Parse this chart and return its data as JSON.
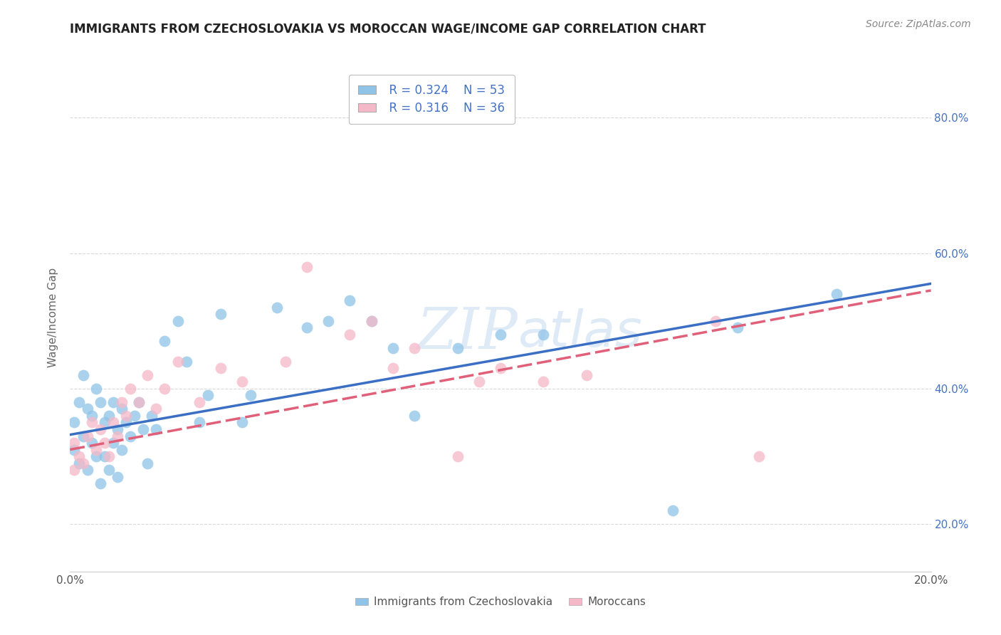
{
  "title": "IMMIGRANTS FROM CZECHOSLOVAKIA VS MOROCCAN WAGE/INCOME GAP CORRELATION CHART",
  "source": "Source: ZipAtlas.com",
  "ylabel": "Wage/Income Gap",
  "legend_label1": "Immigrants from Czechoslovakia",
  "legend_label2": "Moroccans",
  "r1": 0.324,
  "n1": 53,
  "r2": 0.316,
  "n2": 36,
  "color1": "#8fc4e8",
  "color2": "#f5b8c8",
  "line_color1": "#3a6fc4",
  "line_color2": "#e0607a",
  "xlim": [
    0.0,
    0.2
  ],
  "ylim": [
    0.13,
    0.88
  ],
  "watermark": "ZIPatlas",
  "background_color": "#ffffff",
  "grid_color": "#d0d0d0",
  "scatter1_x": [
    0.001,
    0.001,
    0.002,
    0.002,
    0.003,
    0.003,
    0.004,
    0.004,
    0.005,
    0.005,
    0.006,
    0.006,
    0.007,
    0.007,
    0.008,
    0.008,
    0.009,
    0.009,
    0.01,
    0.01,
    0.011,
    0.011,
    0.012,
    0.012,
    0.013,
    0.014,
    0.015,
    0.016,
    0.017,
    0.018,
    0.019,
    0.02,
    0.022,
    0.025,
    0.027,
    0.03,
    0.032,
    0.035,
    0.04,
    0.042,
    0.048,
    0.055,
    0.06,
    0.065,
    0.07,
    0.075,
    0.08,
    0.09,
    0.1,
    0.11,
    0.14,
    0.155,
    0.178
  ],
  "scatter1_y": [
    0.35,
    0.31,
    0.38,
    0.29,
    0.42,
    0.33,
    0.37,
    0.28,
    0.36,
    0.32,
    0.4,
    0.3,
    0.38,
    0.26,
    0.35,
    0.3,
    0.36,
    0.28,
    0.38,
    0.32,
    0.34,
    0.27,
    0.37,
    0.31,
    0.35,
    0.33,
    0.36,
    0.38,
    0.34,
    0.29,
    0.36,
    0.34,
    0.47,
    0.5,
    0.44,
    0.35,
    0.39,
    0.51,
    0.35,
    0.39,
    0.52,
    0.49,
    0.5,
    0.53,
    0.5,
    0.46,
    0.36,
    0.46,
    0.48,
    0.48,
    0.22,
    0.49,
    0.54
  ],
  "scatter2_x": [
    0.001,
    0.001,
    0.002,
    0.003,
    0.004,
    0.005,
    0.006,
    0.007,
    0.008,
    0.009,
    0.01,
    0.011,
    0.012,
    0.013,
    0.014,
    0.016,
    0.018,
    0.02,
    0.022,
    0.025,
    0.03,
    0.035,
    0.04,
    0.05,
    0.055,
    0.065,
    0.07,
    0.075,
    0.08,
    0.09,
    0.095,
    0.1,
    0.11,
    0.12,
    0.15,
    0.16
  ],
  "scatter2_y": [
    0.32,
    0.28,
    0.3,
    0.29,
    0.33,
    0.35,
    0.31,
    0.34,
    0.32,
    0.3,
    0.35,
    0.33,
    0.38,
    0.36,
    0.4,
    0.38,
    0.42,
    0.37,
    0.4,
    0.44,
    0.38,
    0.43,
    0.41,
    0.44,
    0.58,
    0.48,
    0.5,
    0.43,
    0.46,
    0.3,
    0.41,
    0.43,
    0.41,
    0.42,
    0.5,
    0.3
  ],
  "yticks": [
    0.2,
    0.4,
    0.6,
    0.8
  ],
  "ytick_labels": [
    "20.0%",
    "40.0%",
    "60.0%",
    "80.0%"
  ],
  "xticks": [
    0.0,
    0.05,
    0.1,
    0.15,
    0.2
  ],
  "xtick_labels": [
    "0.0%",
    "",
    "",
    "",
    "20.0%"
  ]
}
